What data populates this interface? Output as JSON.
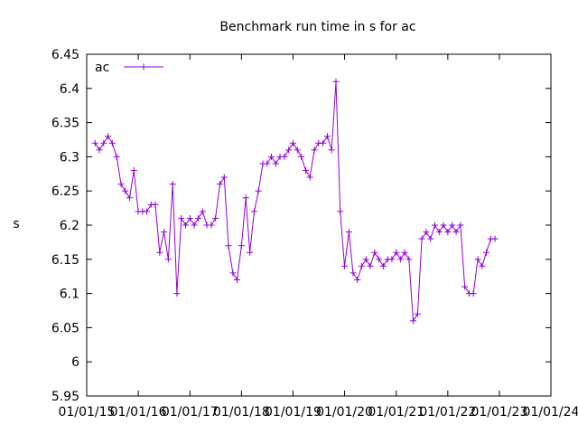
{
  "chart_data": {
    "type": "line",
    "title": "Benchmark run time in s for ac",
    "xlabel": "",
    "ylabel": "s",
    "ylim": [
      5.95,
      6.45
    ],
    "yticks": [
      "5.95",
      "6",
      "6.05",
      "6.1",
      "6.15",
      "6.2",
      "6.25",
      "6.3",
      "6.35",
      "6.4",
      "6.45"
    ],
    "xlim": [
      "2015-01-01",
      "2024-01-01"
    ],
    "xticks": [
      "01/01/15",
      "01/01/16",
      "01/01/17",
      "01/01/18",
      "01/01/19",
      "01/01/20",
      "01/01/21",
      "01/01/22",
      "01/01/23",
      "01/01/24"
    ],
    "grid": false,
    "legend": "top-left",
    "series": [
      {
        "name": "ac",
        "color": "#9400d3",
        "marker": "plus",
        "x": [
          "2015-03-01",
          "2015-04-01",
          "2015-05-01",
          "2015-06-01",
          "2015-07-01",
          "2015-08-01",
          "2015-09-01",
          "2015-10-01",
          "2015-11-01",
          "2015-12-01",
          "2016-01-01",
          "2016-02-01",
          "2016-03-01",
          "2016-04-01",
          "2016-05-01",
          "2016-06-01",
          "2016-07-01",
          "2016-08-01",
          "2016-09-01",
          "2016-10-01",
          "2016-11-01",
          "2016-12-01",
          "2017-01-01",
          "2017-02-01",
          "2017-03-01",
          "2017-04-01",
          "2017-05-01",
          "2017-06-01",
          "2017-07-01",
          "2017-08-01",
          "2017-09-01",
          "2017-10-01",
          "2017-11-01",
          "2017-12-01",
          "2018-01-01",
          "2018-02-01",
          "2018-03-01",
          "2018-04-01",
          "2018-05-01",
          "2018-06-01",
          "2018-07-01",
          "2018-08-01",
          "2018-09-01",
          "2018-10-01",
          "2018-11-01",
          "2018-12-01",
          "2019-01-01",
          "2019-02-01",
          "2019-03-01",
          "2019-04-01",
          "2019-05-01",
          "2019-06-01",
          "2019-07-01",
          "2019-08-01",
          "2019-09-01",
          "2019-10-01",
          "2019-11-01",
          "2019-12-01",
          "2020-01-01",
          "2020-02-01",
          "2020-03-01",
          "2020-04-01",
          "2020-05-01",
          "2020-06-01",
          "2020-07-01",
          "2020-08-01",
          "2020-09-01",
          "2020-10-01",
          "2020-11-01",
          "2020-12-01",
          "2021-01-01",
          "2021-02-01",
          "2021-03-01",
          "2021-04-01",
          "2021-05-01",
          "2021-06-01",
          "2021-07-01",
          "2021-08-01",
          "2021-09-01",
          "2021-10-01",
          "2021-11-01",
          "2021-12-01",
          "2022-01-01",
          "2022-02-01",
          "2022-03-01",
          "2022-04-01",
          "2022-05-01",
          "2022-06-01",
          "2022-07-01",
          "2022-08-01",
          "2022-09-01",
          "2022-10-01",
          "2022-11-01",
          "2022-12-01"
        ],
        "y": [
          6.32,
          6.31,
          6.32,
          6.33,
          6.32,
          6.3,
          6.26,
          6.25,
          6.24,
          6.28,
          6.22,
          6.22,
          6.22,
          6.23,
          6.23,
          6.16,
          6.19,
          6.15,
          6.26,
          6.1,
          6.21,
          6.2,
          6.21,
          6.2,
          6.21,
          6.22,
          6.2,
          6.2,
          6.21,
          6.26,
          6.27,
          6.17,
          6.13,
          6.12,
          6.17,
          6.24,
          6.16,
          6.22,
          6.25,
          6.29,
          6.29,
          6.3,
          6.29,
          6.3,
          6.3,
          6.31,
          6.32,
          6.31,
          6.3,
          6.28,
          6.27,
          6.31,
          6.32,
          6.32,
          6.33,
          6.31,
          6.41,
          6.22,
          6.14,
          6.19,
          6.13,
          6.12,
          6.14,
          6.15,
          6.14,
          6.16,
          6.15,
          6.14,
          6.15,
          6.15,
          6.16,
          6.15,
          6.16,
          6.15,
          6.06,
          6.07,
          6.18,
          6.19,
          6.18,
          6.2,
          6.19,
          6.2,
          6.19,
          6.2,
          6.19,
          6.2,
          6.11,
          6.1,
          6.1,
          6.15,
          6.14,
          6.16,
          6.18,
          6.18
        ]
      }
    ]
  }
}
